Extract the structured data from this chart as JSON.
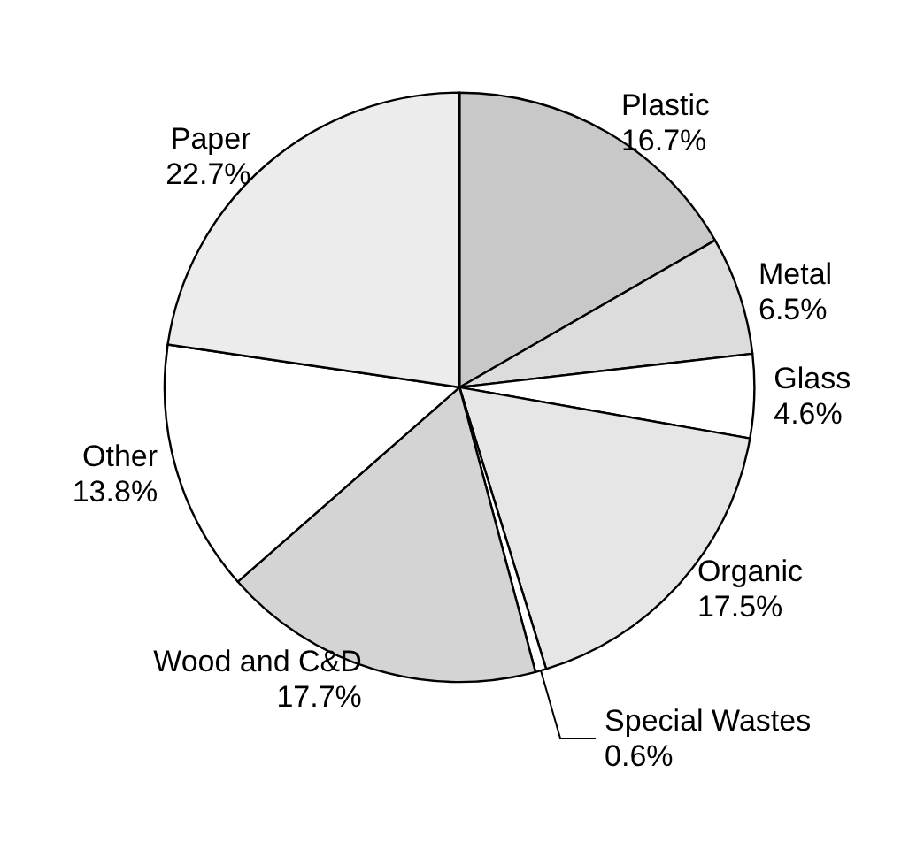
{
  "chart_data": {
    "type": "pie",
    "categories": [
      "Plastic",
      "Metal",
      "Glass",
      "Organic",
      "Special Wastes",
      "Wood and C&D",
      "Other",
      "Paper"
    ],
    "values": [
      16.7,
      6.5,
      4.6,
      17.5,
      0.6,
      17.7,
      13.8,
      22.7
    ],
    "value_labels": [
      "16.7%",
      "6.5%",
      "4.6%",
      "17.5%",
      "0.6%",
      "17.7%",
      "13.8%",
      "22.7%"
    ],
    "colors": [
      "#c8c8c8",
      "#dcdcdc",
      "#ffffff",
      "#e6e6e6",
      "#ffffff",
      "#d4d4d4",
      "#ffffff",
      "#ececec"
    ],
    "legend": false
  }
}
